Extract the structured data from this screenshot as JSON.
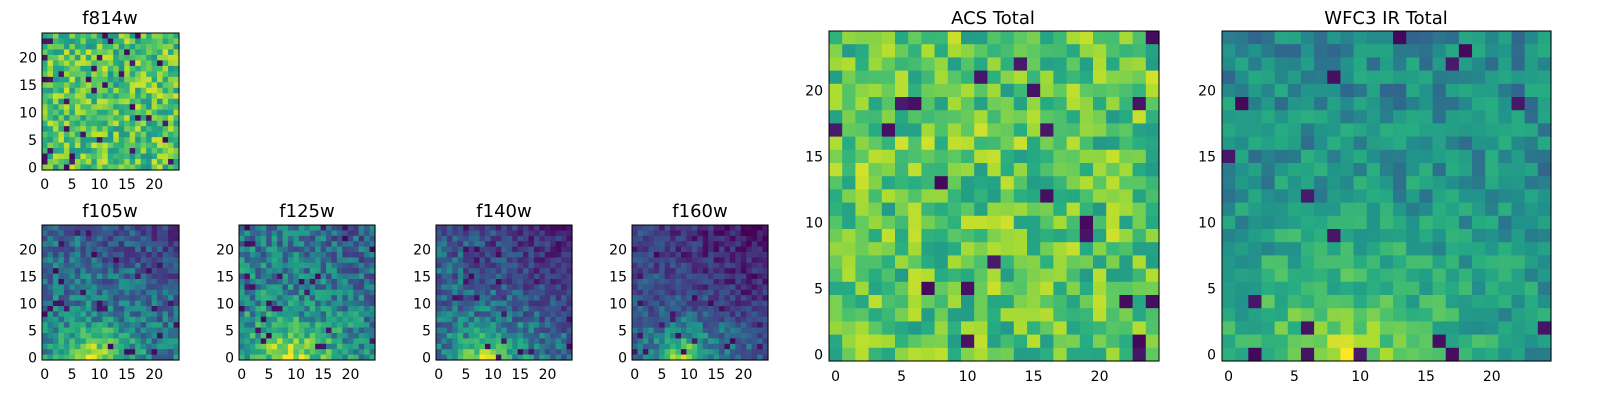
{
  "chart_data": [
    {
      "type": "heatmap",
      "title": "f814w",
      "grid_size": 25,
      "colormap": "viridis",
      "xticks": [
        "0",
        "5",
        "10",
        "15",
        "20"
      ],
      "yticks": [
        "0",
        "5",
        "10",
        "15",
        "20"
      ],
      "xlim": [
        -0.5,
        24.5
      ],
      "ylim": [
        -0.5,
        24.5
      ]
    },
    {
      "type": "heatmap",
      "title": "f105w",
      "grid_size": 25,
      "colormap": "viridis",
      "xticks": [
        "0",
        "5",
        "10",
        "15",
        "20"
      ],
      "yticks": [
        "0",
        "5",
        "10",
        "15",
        "20"
      ],
      "xlim": [
        -0.5,
        24.5
      ],
      "ylim": [
        -0.5,
        24.5
      ]
    },
    {
      "type": "heatmap",
      "title": "f125w",
      "grid_size": 25,
      "colormap": "viridis",
      "xticks": [
        "0",
        "5",
        "10",
        "15",
        "20"
      ],
      "yticks": [
        "0",
        "5",
        "10",
        "15",
        "20"
      ],
      "xlim": [
        -0.5,
        24.5
      ],
      "ylim": [
        -0.5,
        24.5
      ]
    },
    {
      "type": "heatmap",
      "title": "f140w",
      "grid_size": 25,
      "colormap": "viridis",
      "xticks": [
        "0",
        "5",
        "10",
        "15",
        "20"
      ],
      "yticks": [
        "0",
        "5",
        "10",
        "15",
        "20"
      ],
      "xlim": [
        -0.5,
        24.5
      ],
      "ylim": [
        -0.5,
        24.5
      ]
    },
    {
      "type": "heatmap",
      "title": "f160w",
      "grid_size": 25,
      "colormap": "viridis",
      "xticks": [
        "0",
        "5",
        "10",
        "15",
        "20"
      ],
      "yticks": [
        "0",
        "5",
        "10",
        "15",
        "20"
      ],
      "xlim": [
        -0.5,
        24.5
      ],
      "ylim": [
        -0.5,
        24.5
      ]
    },
    {
      "type": "heatmap",
      "title": "ACS Total",
      "grid_size": 25,
      "colormap": "viridis",
      "xticks": [
        "0",
        "5",
        "10",
        "15",
        "20"
      ],
      "yticks": [
        "0",
        "5",
        "10",
        "15",
        "20"
      ],
      "xlim": [
        -0.5,
        24.5
      ],
      "ylim": [
        -0.5,
        24.5
      ]
    },
    {
      "type": "heatmap",
      "title": "WFC3 IR Total",
      "grid_size": 25,
      "colormap": "viridis",
      "xticks": [
        "0",
        "5",
        "10",
        "15",
        "20"
      ],
      "yticks": [
        "0",
        "5",
        "10",
        "15",
        "20"
      ],
      "xlim": [
        -0.5,
        24.5
      ],
      "ylim": [
        -0.5,
        24.5
      ]
    }
  ]
}
